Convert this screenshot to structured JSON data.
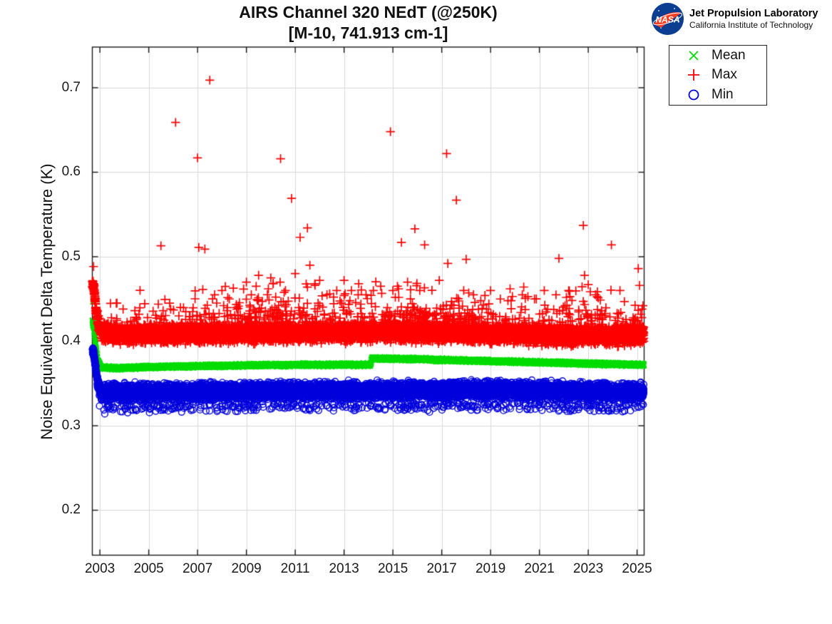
{
  "logo": {
    "insignia_text": "NASA",
    "insignia_bg": "#0b3d91",
    "insignia_swoosh": "#fc3d21",
    "org_name": "Jet Propulsion Laboratory",
    "org_sub": "California Institute of Technology"
  },
  "chart_data": {
    "type": "scatter",
    "title": "AIRS Channel 320 NEdT (@250K)",
    "subtitle": "[M-10, 741.913 cm-1]",
    "xlabel": "",
    "ylabel": "Noise Equivalent Delta Temperature (K)",
    "x_range": [
      2002.69,
      2025.29
    ],
    "y_range": [
      0.1468,
      0.7481
    ],
    "x_ticks": [
      2003,
      2005,
      2007,
      2009,
      2011,
      2013,
      2015,
      2017,
      2019,
      2021,
      2023,
      2025
    ],
    "y_ticks": [
      0.2,
      0.3,
      0.4,
      0.5,
      0.6,
      0.7
    ],
    "grid": true,
    "legend_position": "outside-top-right",
    "axis_color": "#1a1a1a",
    "grid_color": "#d9d9d9",
    "seed": 11,
    "time_step_years": 0.0027397,
    "data_start": 2002.693,
    "data_end": 2025.28,
    "series": [
      {
        "name": "Mean",
        "marker": "x",
        "color": "#00dd00",
        "band": [
          [
            2002.693,
            0.4235
          ],
          [
            2002.76,
            0.4165
          ],
          [
            2002.82,
            0.398
          ],
          [
            2002.9,
            0.3775
          ],
          [
            2003.05,
            0.3695
          ],
          [
            2003.6,
            0.368
          ],
          [
            2005,
            0.3695
          ],
          [
            2007,
            0.3705
          ],
          [
            2009,
            0.3715
          ],
          [
            2011,
            0.372
          ],
          [
            2013,
            0.3722
          ],
          [
            2014.09,
            0.3722
          ],
          [
            2014.13,
            0.3795
          ],
          [
            2015.5,
            0.379
          ],
          [
            2017,
            0.3778
          ],
          [
            2019,
            0.3765
          ],
          [
            2021,
            0.375
          ],
          [
            2023,
            0.3735
          ],
          [
            2025.28,
            0.372
          ]
        ],
        "spread": [
          [
            2002.693,
            0.004
          ],
          [
            2002.9,
            0.0025
          ],
          [
            2003.2,
            0.0018
          ],
          [
            2025.28,
            0.0018
          ]
        ],
        "outliers": [
          [
            2002.705,
            0.4465
          ]
        ]
      },
      {
        "name": "Max",
        "marker": "+",
        "color": "#ff0000",
        "band": [
          [
            2002.693,
            0.467
          ],
          [
            2002.77,
            0.462
          ],
          [
            2002.83,
            0.438
          ],
          [
            2002.95,
            0.4185
          ],
          [
            2003.1,
            0.4105
          ],
          [
            2004,
            0.4085
          ],
          [
            2006,
            0.409
          ],
          [
            2008,
            0.4095
          ],
          [
            2010,
            0.4105
          ],
          [
            2012,
            0.411
          ],
          [
            2014,
            0.411
          ],
          [
            2014.2,
            0.4125
          ],
          [
            2016,
            0.4115
          ],
          [
            2018,
            0.41
          ],
          [
            2020,
            0.4085
          ],
          [
            2022,
            0.407
          ],
          [
            2024,
            0.407
          ],
          [
            2025.28,
            0.4085
          ]
        ],
        "spread": [
          [
            2002.693,
            0.0055
          ],
          [
            2002.85,
            0.0075
          ],
          [
            2003.1,
            0.01
          ],
          [
            2025.28,
            0.01
          ]
        ],
        "tail": {
          "dir": 1,
          "scale": 0.012,
          "cap": 0.06,
          "rate": [
            [
              2002.7,
              0.012
            ],
            [
              2004,
              0.02
            ],
            [
              2006,
              0.03
            ],
            [
              2008,
              0.05
            ],
            [
              2009.5,
              0.09
            ],
            [
              2011.5,
              0.08
            ],
            [
              2013,
              0.05
            ],
            [
              2014.5,
              0.07
            ],
            [
              2016,
              0.08
            ],
            [
              2018,
              0.07
            ],
            [
              2019.5,
              0.05
            ],
            [
              2021,
              0.04
            ],
            [
              2022.5,
              0.05
            ],
            [
              2024,
              0.05
            ],
            [
              2025.28,
              0.07
            ]
          ]
        },
        "outliers": [
          [
            2003.95,
            0.438
          ],
          [
            2004.6,
            0.432
          ],
          [
            2005.5,
            0.513
          ],
          [
            2005.9,
            0.438
          ],
          [
            2006.1,
            0.659
          ],
          [
            2006.3,
            0.44
          ],
          [
            2006.8,
            0.435
          ],
          [
            2007.0,
            0.617
          ],
          [
            2007.05,
            0.511
          ],
          [
            2007.3,
            0.509
          ],
          [
            2007.5,
            0.709
          ],
          [
            2007.7,
            0.455
          ],
          [
            2008.0,
            0.46
          ],
          [
            2008.3,
            0.45
          ],
          [
            2008.6,
            0.44
          ],
          [
            2009.0,
            0.47
          ],
          [
            2009.2,
            0.455
          ],
          [
            2009.4,
            0.465
          ],
          [
            2009.5,
            0.478
          ],
          [
            2009.9,
            0.462
          ],
          [
            2010.0,
            0.475
          ],
          [
            2010.1,
            0.468
          ],
          [
            2010.4,
            0.616
          ],
          [
            2010.6,
            0.46
          ],
          [
            2010.85,
            0.569
          ],
          [
            2011.0,
            0.48
          ],
          [
            2011.2,
            0.523
          ],
          [
            2011.5,
            0.534
          ],
          [
            2011.6,
            0.49
          ],
          [
            2011.8,
            0.468
          ],
          [
            2012.0,
            0.472
          ],
          [
            2012.3,
            0.455
          ],
          [
            2012.7,
            0.46
          ],
          [
            2013.0,
            0.472
          ],
          [
            2013.3,
            0.46
          ],
          [
            2013.6,
            0.468
          ],
          [
            2013.9,
            0.455
          ],
          [
            2014.2,
            0.46
          ],
          [
            2014.5,
            0.465
          ],
          [
            2014.9,
            0.648
          ],
          [
            2015.0,
            0.46
          ],
          [
            2015.35,
            0.517
          ],
          [
            2015.6,
            0.47
          ],
          [
            2015.9,
            0.533
          ],
          [
            2016.1,
            0.46
          ],
          [
            2016.3,
            0.514
          ],
          [
            2016.9,
            0.472
          ],
          [
            2017.2,
            0.622
          ],
          [
            2017.25,
            0.492
          ],
          [
            2017.6,
            0.567
          ],
          [
            2017.9,
            0.46
          ],
          [
            2018.0,
            0.497
          ],
          [
            2018.3,
            0.455
          ],
          [
            2018.6,
            0.448
          ],
          [
            2019.0,
            0.46
          ],
          [
            2019.4,
            0.45
          ],
          [
            2019.8,
            0.462
          ],
          [
            2020.3,
            0.455
          ],
          [
            2020.8,
            0.45
          ],
          [
            2021.2,
            0.46
          ],
          [
            2021.8,
            0.498
          ],
          [
            2022.2,
            0.46
          ],
          [
            2022.8,
            0.537
          ],
          [
            2022.85,
            0.478
          ],
          [
            2023.0,
            0.467
          ],
          [
            2023.3,
            0.455
          ],
          [
            2023.95,
            0.514
          ],
          [
            2024.3,
            0.46
          ],
          [
            2025.05,
            0.486
          ],
          [
            2025.1,
            0.466
          ]
        ]
      },
      {
        "name": "Min",
        "marker": "o",
        "color": "#0000dd",
        "band": [
          [
            2002.693,
            0.389
          ],
          [
            2002.76,
            0.384
          ],
          [
            2002.82,
            0.37
          ],
          [
            2002.9,
            0.352
          ],
          [
            2003.05,
            0.3395
          ],
          [
            2004,
            0.339
          ],
          [
            2006,
            0.3395
          ],
          [
            2008,
            0.34
          ],
          [
            2010,
            0.3405
          ],
          [
            2012,
            0.341
          ],
          [
            2014,
            0.3415
          ],
          [
            2016,
            0.342
          ],
          [
            2018,
            0.342
          ],
          [
            2020,
            0.3418
          ],
          [
            2022,
            0.341
          ],
          [
            2024,
            0.3405
          ],
          [
            2025.28,
            0.34
          ]
        ],
        "spread": [
          [
            2002.693,
            0.0038
          ],
          [
            2002.85,
            0.006
          ],
          [
            2003.1,
            0.0092
          ],
          [
            2025.28,
            0.0092
          ]
        ],
        "tail": {
          "dir": -1,
          "scale": 0.0065,
          "cap": 0.024,
          "rate": [
            [
              2002.7,
              0.02
            ],
            [
              2003.5,
              0.05
            ],
            [
              2025.28,
              0.05
            ]
          ]
        },
        "outliers": [
          [
            2003.2,
            0.314
          ],
          [
            2004.5,
            0.318
          ],
          [
            2005.8,
            0.3175
          ],
          [
            2007.8,
            0.317
          ],
          [
            2009.3,
            0.3185
          ],
          [
            2011.6,
            0.318
          ],
          [
            2013.4,
            0.318
          ],
          [
            2016.5,
            0.316
          ],
          [
            2018.2,
            0.3185
          ],
          [
            2020.5,
            0.319
          ],
          [
            2022.3,
            0.3185
          ],
          [
            2023.8,
            0.318
          ]
        ]
      }
    ]
  }
}
